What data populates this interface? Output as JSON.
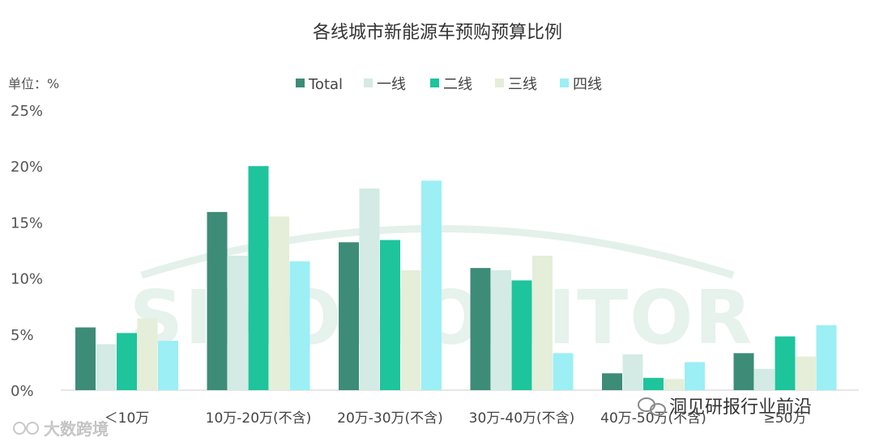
{
  "chart_data": {
    "type": "bar",
    "title": "各线城市新能源车预购预算比例",
    "unit_label": "单位：%",
    "categories": [
      "＜10万",
      "10万-20万(不含)",
      "20万-30万(不含)",
      "30万-40万(不含)",
      "40万-50万(不含)",
      "≥50万"
    ],
    "series": [
      {
        "name": "Total",
        "color": "#3d8c78",
        "values": [
          5.6,
          15.9,
          13.2,
          10.9,
          1.5,
          3.3
        ]
      },
      {
        "name": "一线",
        "color": "#d3ebe4",
        "values": [
          4.1,
          12.0,
          18.0,
          10.7,
          3.2,
          1.9
        ]
      },
      {
        "name": "二线",
        "color": "#1ec49c",
        "values": [
          5.1,
          20.0,
          13.4,
          9.8,
          1.1,
          4.8
        ]
      },
      {
        "name": "三线",
        "color": "#e4eed9",
        "values": [
          6.4,
          15.5,
          10.7,
          12.0,
          1.0,
          3.0
        ]
      },
      {
        "name": "四线",
        "color": "#9beff5",
        "values": [
          4.4,
          11.5,
          18.7,
          3.3,
          2.5,
          5.8
        ]
      }
    ],
    "ylim": [
      0,
      25
    ],
    "yticks": [
      "0%",
      "5%",
      "10%",
      "15%",
      "20%",
      "25%"
    ],
    "legend_position": "top"
  },
  "watermarks": {
    "background": "SINOMONITOR",
    "bottom_right": "洞见研报行业前沿",
    "bottom_left": "大数跨境"
  }
}
